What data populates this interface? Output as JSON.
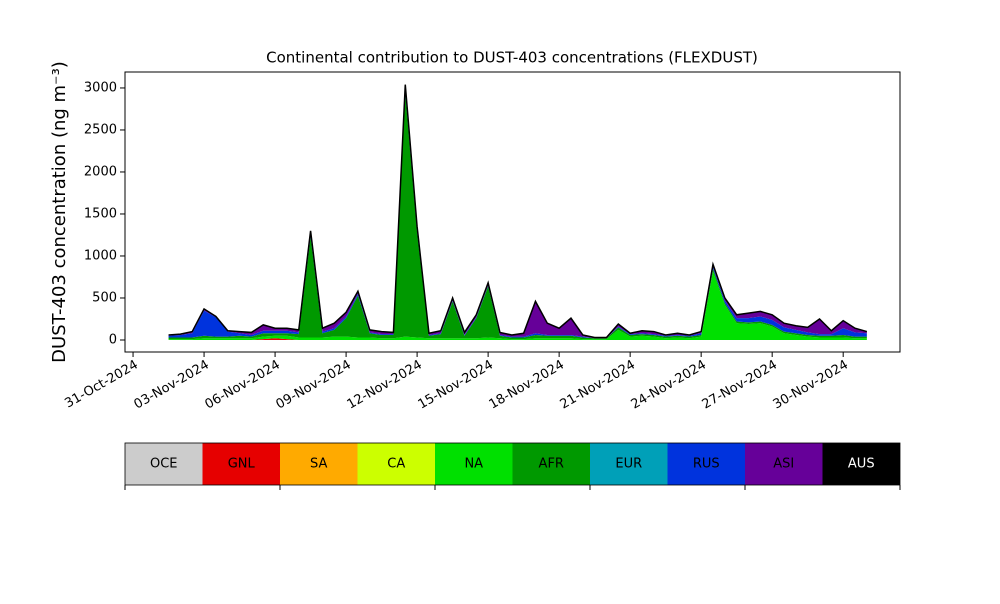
{
  "chart_data": {
    "type": "stacked-area",
    "title": "Continental contribution to DUST-403 concentrations (FLEXDUST)",
    "y_label": "DUST-403 concentration (ng m⁻³)",
    "xlim": [
      -0.34,
      32.4
    ],
    "xticks": [
      {
        "value": 0,
        "label": "31-Oct-2024"
      },
      {
        "value": 3,
        "label": "03-Nov-2024"
      },
      {
        "value": 6,
        "label": "06-Nov-2024"
      },
      {
        "value": 9,
        "label": "09-Nov-2024"
      },
      {
        "value": 12,
        "label": "12-Nov-2024"
      },
      {
        "value": 15,
        "label": "15-Nov-2024"
      },
      {
        "value": 18,
        "label": "18-Nov-2024"
      },
      {
        "value": 21,
        "label": "21-Nov-2024"
      },
      {
        "value": 24,
        "label": "24-Nov-2024"
      },
      {
        "value": 27,
        "label": "27-Nov-2024"
      },
      {
        "value": 30,
        "label": "30-Nov-2024"
      }
    ],
    "ylim": [
      -143,
      3190
    ],
    "yticks": [
      0,
      500,
      1000,
      1500,
      2000,
      2500,
      3000
    ],
    "x": [
      1.5,
      2,
      2.5,
      3,
      3.5,
      4,
      4.5,
      5,
      5.5,
      6,
      6.5,
      7,
      7.5,
      8,
      8.5,
      9,
      9.5,
      10,
      10.5,
      11,
      11.5,
      12,
      12.5,
      13,
      13.5,
      14,
      14.5,
      15,
      15.5,
      16,
      16.5,
      17,
      17.5,
      18,
      18.5,
      19,
      19.5,
      20,
      20.5,
      21,
      21.5,
      22,
      22.5,
      23,
      23.5,
      24,
      24.5,
      25,
      25.5,
      26,
      26.5,
      27,
      27.5,
      28,
      28.5,
      29,
      29.5,
      30,
      30.5,
      31
    ],
    "series": [
      {
        "name": "OCE",
        "color": "#cccccc",
        "values": [
          0,
          0,
          0,
          0,
          0,
          0,
          0,
          0,
          0,
          0,
          0,
          0,
          0,
          0,
          0,
          0,
          0,
          0,
          0,
          0,
          0,
          0,
          0,
          0,
          0,
          0,
          0,
          0,
          0,
          0,
          0,
          0,
          0,
          0,
          0,
          0,
          0,
          0,
          0,
          0,
          0,
          0,
          0,
          0,
          0,
          0,
          0,
          0,
          0,
          0,
          0,
          0,
          0,
          0,
          0,
          0,
          0,
          0,
          0,
          0
        ]
      },
      {
        "name": "GNL",
        "color": "#e60000",
        "values": [
          0,
          0,
          0,
          0,
          0,
          0,
          0,
          0,
          10,
          20,
          10,
          0,
          0,
          0,
          0,
          0,
          0,
          0,
          0,
          0,
          0,
          0,
          0,
          0,
          0,
          0,
          0,
          0,
          0,
          0,
          0,
          0,
          0,
          0,
          0,
          0,
          0,
          0,
          0,
          0,
          0,
          0,
          0,
          0,
          0,
          0,
          0,
          0,
          0,
          0,
          0,
          0,
          0,
          0,
          0,
          0,
          0,
          0,
          0,
          0
        ]
      },
      {
        "name": "SA",
        "color": "#ffaa00",
        "values": [
          0,
          0,
          0,
          0,
          0,
          0,
          0,
          0,
          0,
          0,
          0,
          0,
          0,
          0,
          0,
          0,
          0,
          0,
          0,
          0,
          0,
          0,
          0,
          0,
          0,
          0,
          0,
          0,
          0,
          0,
          0,
          0,
          0,
          0,
          0,
          0,
          0,
          0,
          0,
          0,
          0,
          0,
          0,
          0,
          0,
          0,
          0,
          0,
          0,
          0,
          0,
          0,
          0,
          0,
          0,
          0,
          0,
          0,
          0,
          0
        ]
      },
      {
        "name": "CA",
        "color": "#ccff00",
        "values": [
          0,
          0,
          0,
          0,
          0,
          0,
          0,
          0,
          0,
          0,
          0,
          0,
          0,
          0,
          0,
          0,
          0,
          0,
          0,
          0,
          0,
          0,
          0,
          0,
          0,
          0,
          0,
          0,
          0,
          0,
          0,
          0,
          0,
          0,
          0,
          0,
          0,
          0,
          0,
          0,
          0,
          0,
          0,
          0,
          0,
          0,
          0,
          0,
          0,
          0,
          0,
          0,
          0,
          0,
          0,
          0,
          0,
          0,
          0,
          0
        ]
      },
      {
        "name": "NA",
        "color": "#00e000",
        "values": [
          10,
          10,
          10,
          20,
          20,
          20,
          20,
          20,
          30,
          30,
          40,
          30,
          30,
          30,
          40,
          40,
          30,
          30,
          20,
          20,
          40,
          30,
          20,
          20,
          20,
          20,
          20,
          30,
          20,
          10,
          10,
          20,
          20,
          20,
          20,
          10,
          10,
          10,
          120,
          40,
          50,
          40,
          20,
          30,
          20,
          40,
          820,
          420,
          200,
          190,
          200,
          160,
          80,
          60,
          40,
          30,
          30,
          30,
          20,
          20
        ]
      },
      {
        "name": "AFR",
        "color": "#009900",
        "values": [
          20,
          20,
          20,
          30,
          20,
          20,
          30,
          20,
          40,
          30,
          30,
          40,
          1200,
          50,
          80,
          220,
          500,
          50,
          40,
          40,
          2900,
          1250,
          30,
          50,
          440,
          30,
          240,
          610,
          30,
          20,
          20,
          40,
          30,
          30,
          30,
          20,
          10,
          10,
          30,
          20,
          20,
          20,
          20,
          20,
          20,
          20,
          30,
          20,
          20,
          20,
          20,
          20,
          20,
          20,
          20,
          20,
          20,
          30,
          20,
          20
        ]
      },
      {
        "name": "EUR",
        "color": "#00a0b8",
        "values": [
          0,
          0,
          0,
          0,
          0,
          0,
          0,
          0,
          0,
          0,
          0,
          0,
          0,
          0,
          0,
          0,
          0,
          0,
          0,
          0,
          0,
          0,
          0,
          0,
          0,
          0,
          0,
          0,
          0,
          0,
          0,
          0,
          0,
          0,
          0,
          0,
          0,
          0,
          0,
          0,
          0,
          0,
          0,
          0,
          0,
          0,
          0,
          0,
          0,
          0,
          0,
          0,
          0,
          0,
          0,
          0,
          0,
          0,
          0,
          0
        ]
      },
      {
        "name": "RUS",
        "color": "#0033dd",
        "values": [
          20,
          30,
          50,
          300,
          230,
          60,
          30,
          20,
          30,
          30,
          30,
          20,
          30,
          20,
          20,
          20,
          20,
          10,
          10,
          10,
          50,
          30,
          10,
          10,
          10,
          10,
          10,
          10,
          10,
          10,
          10,
          20,
          10,
          10,
          10,
          10,
          0,
          0,
          10,
          10,
          10,
          10,
          10,
          10,
          10,
          20,
          20,
          30,
          40,
          50,
          60,
          60,
          50,
          40,
          30,
          20,
          20,
          80,
          50,
          40
        ]
      },
      {
        "name": "ASI",
        "color": "#660099",
        "values": [
          10,
          10,
          20,
          20,
          10,
          10,
          20,
          30,
          70,
          30,
          30,
          30,
          40,
          40,
          60,
          50,
          30,
          30,
          30,
          20,
          50,
          40,
          20,
          30,
          30,
          30,
          30,
          30,
          30,
          20,
          40,
          380,
          140,
          80,
          200,
          20,
          10,
          10,
          30,
          10,
          30,
          30,
          10,
          20,
          10,
          20,
          30,
          30,
          40,
          60,
          60,
          60,
          50,
          50,
          60,
          180,
          40,
          90,
          50,
          20
        ]
      },
      {
        "name": "AUS",
        "color": "#000000",
        "values": [
          0,
          0,
          0,
          0,
          0,
          0,
          0,
          0,
          0,
          0,
          0,
          0,
          0,
          0,
          0,
          0,
          0,
          0,
          0,
          0,
          0,
          0,
          0,
          0,
          0,
          0,
          0,
          0,
          0,
          0,
          0,
          0,
          0,
          0,
          0,
          0,
          0,
          0,
          0,
          0,
          0,
          0,
          0,
          0,
          0,
          0,
          0,
          0,
          0,
          0,
          0,
          0,
          0,
          0,
          0,
          0,
          0,
          0,
          0,
          0
        ]
      }
    ]
  }
}
